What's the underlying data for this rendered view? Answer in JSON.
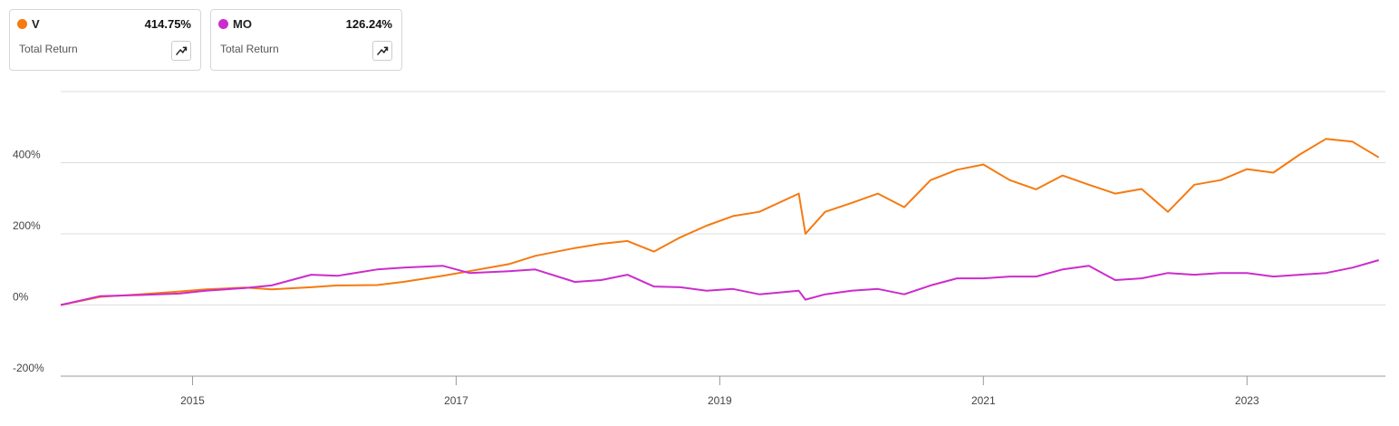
{
  "chart_data": {
    "type": "line",
    "caption": "Total Return",
    "x": [
      2014.0,
      2014.3,
      2014.6,
      2014.9,
      2015.1,
      2015.4,
      2015.6,
      2015.9,
      2016.1,
      2016.4,
      2016.6,
      2016.9,
      2017.1,
      2017.4,
      2017.6,
      2017.9,
      2018.1,
      2018.3,
      2018.5,
      2018.7,
      2018.9,
      2019.1,
      2019.3,
      2019.6,
      2019.65,
      2019.8,
      2020.0,
      2020.2,
      2020.4,
      2020.6,
      2020.8,
      2021.0,
      2021.2,
      2021.4,
      2021.6,
      2021.8,
      2022.0,
      2022.2,
      2022.4,
      2022.6,
      2022.8,
      2023.0,
      2023.2,
      2023.4,
      2023.6,
      2023.8,
      2024.0
    ],
    "series": [
      {
        "name": "V",
        "color": "#f57a10",
        "end_label": "414.75%",
        "values": [
          0,
          23,
          30,
          38,
          44,
          49,
          44,
          50,
          55,
          56,
          65,
          82,
          95,
          115,
          138,
          160,
          172,
          180,
          150,
          190,
          223,
          250,
          262,
          313,
          200,
          262,
          287,
          313,
          275,
          351,
          380,
          395,
          351,
          325,
          364,
          338,
          313,
          326,
          262,
          338,
          351,
          382,
          372,
          423,
          467,
          459,
          414.75
        ]
      },
      {
        "name": "MO",
        "color": "#cc2ccc",
        "end_label": "126.24%",
        "values": [
          0,
          25,
          28,
          32,
          40,
          48,
          55,
          85,
          82,
          100,
          105,
          110,
          90,
          95,
          100,
          65,
          70,
          85,
          52,
          50,
          40,
          45,
          30,
          40,
          15,
          30,
          40,
          45,
          30,
          55,
          75,
          75,
          80,
          80,
          100,
          110,
          70,
          75,
          90,
          85,
          90,
          90,
          80,
          85,
          90,
          105,
          126.24
        ]
      }
    ],
    "xlim": [
      2014.0,
      2024.05
    ],
    "xticks": [
      2015,
      2017,
      2019,
      2021,
      2023
    ],
    "ylim": [
      -200,
      600
    ],
    "yticks": [
      {
        "value": -200,
        "label": "-200%"
      },
      {
        "value": 0,
        "label": "0%"
      },
      {
        "value": 200,
        "label": "200%"
      },
      {
        "value": 400,
        "label": "400%"
      }
    ],
    "grid": true
  }
}
